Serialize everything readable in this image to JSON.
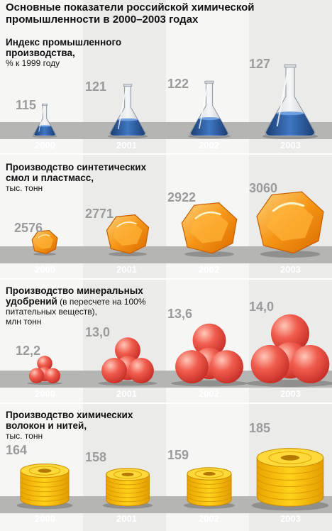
{
  "title": "Основные показатели российской химической промышленности в 2000–2003 годах",
  "title_line1": "Основные показатели российской химической",
  "title_line2": "промышленности в 2000–2003 годах",
  "chart_data": [
    {
      "type": "bar",
      "title": "Индекс промышленного производства,",
      "ylabel": "% к 1999 году",
      "categories": [
        "2000",
        "2001",
        "2002",
        "2003"
      ],
      "values": [
        115,
        121,
        122,
        127
      ],
      "labels": [
        "115",
        "121",
        "122",
        "127"
      ],
      "icon": "flask-icon",
      "color": "#2e5f9e"
    },
    {
      "type": "bar",
      "title": "Производство синтетических смол и пластмасс,",
      "ylabel": "тыс. тонн",
      "categories": [
        "2000",
        "2001",
        "2002",
        "2003"
      ],
      "values": [
        2576,
        2771,
        2922,
        3060
      ],
      "labels": [
        "2576",
        "2771",
        "2922",
        "3060"
      ],
      "icon": "resin-crystal-icon",
      "color": "#f28a10"
    },
    {
      "type": "bar",
      "title": "Производство минеральных удобрений",
      "ylabel": "(в пересчете на 100% питательных веществ), млн тонн",
      "categories": [
        "2000",
        "2001",
        "2002",
        "2003"
      ],
      "values": [
        12.2,
        13.0,
        13.6,
        14.0
      ],
      "labels": [
        "12,2",
        "13,0",
        "13,6",
        "14,0"
      ],
      "icon": "fertilizer-balls-icon",
      "color": "#e8483e"
    },
    {
      "type": "bar",
      "title": "Производство химических волокон и нитей,",
      "ylabel": "тыс. тонн",
      "categories": [
        "2000",
        "2001",
        "2002",
        "2003"
      ],
      "values": [
        164,
        158,
        159,
        185
      ],
      "labels": [
        "164",
        "158",
        "159",
        "185"
      ],
      "icon": "fiber-spool-icon",
      "color": "#f5b800"
    }
  ],
  "s1": {
    "l1": "Индекс промышленного",
    "l2": "производства,",
    "unit": "% к 1999 году"
  },
  "s2": {
    "l1": "Производство синтетических",
    "l2": "смол и пластмасс,",
    "unit": "тыс. тонн"
  },
  "s3": {
    "l1": "Производство минеральных",
    "l2a": "удобрений",
    "l2b": " (в пересчете на 100%",
    "l3": "питательных веществ),",
    "l4": "млн тонн"
  },
  "s4": {
    "l1": "Производство химических",
    "l2": "волокон и нитей,",
    "unit": "тыс. тонн"
  }
}
